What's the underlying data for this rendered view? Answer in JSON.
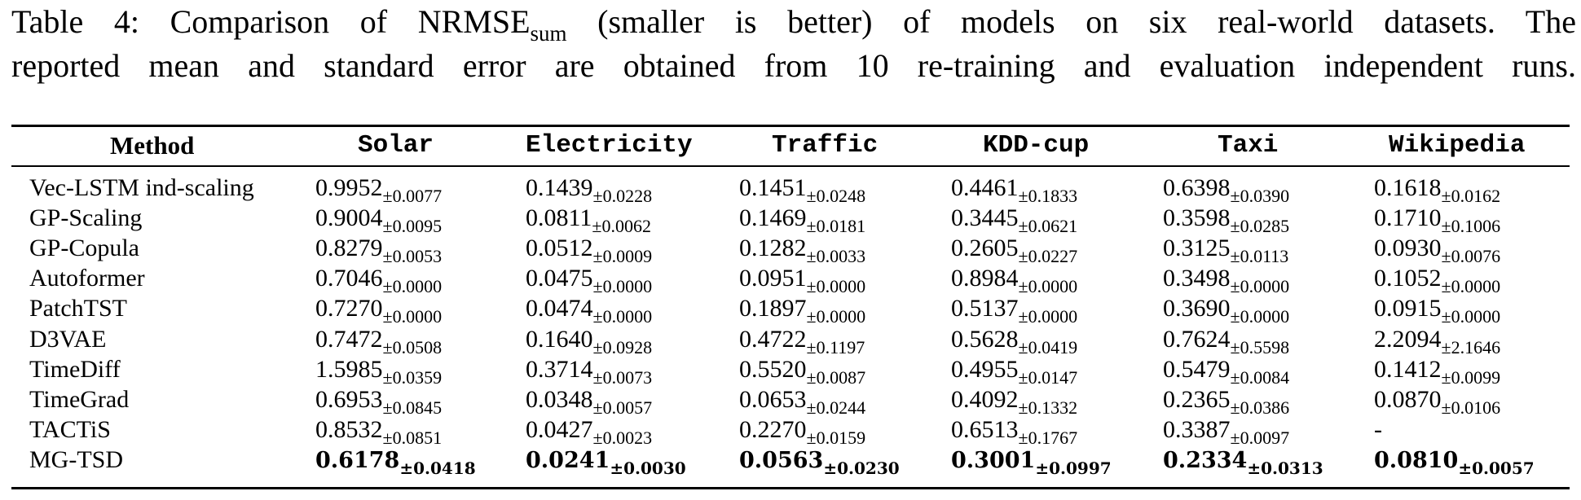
{
  "caption": {
    "line1_prefix": "Table 4:  Comparison of NRMSE",
    "line1_sub": "sum",
    "line1_suffix": " (smaller is better) of models on six real-world datasets.  The",
    "line2": "reported mean and standard error are obtained from 10 re-training and evaluation independent runs."
  },
  "table": {
    "headers": [
      "Method",
      "Solar",
      "Electricity",
      "Traffic",
      "KDD-cup",
      "Taxi",
      "Wikipedia"
    ],
    "rows": [
      {
        "method": "Vec-LSTM ind-scaling",
        "values": [
          [
            "0.9952",
            "±0.0077"
          ],
          [
            "0.1439",
            "±0.0228"
          ],
          [
            "0.1451",
            "±0.0248"
          ],
          [
            "0.4461",
            "±0.1833"
          ],
          [
            "0.6398",
            "±0.0390"
          ],
          [
            "0.1618",
            "±0.0162"
          ]
        ]
      },
      {
        "method": "GP-Scaling",
        "values": [
          [
            "0.9004",
            "±0.0095"
          ],
          [
            "0.0811",
            "±0.0062"
          ],
          [
            "0.1469",
            "±0.0181"
          ],
          [
            "0.3445",
            "±0.0621"
          ],
          [
            "0.3598",
            "±0.0285"
          ],
          [
            "0.1710",
            "±0.1006"
          ]
        ]
      },
      {
        "method": "GP-Copula",
        "values": [
          [
            "0.8279",
            "±0.0053"
          ],
          [
            "0.0512",
            "±0.0009"
          ],
          [
            "0.1282",
            "±0.0033"
          ],
          [
            "0.2605",
            "±0.0227"
          ],
          [
            "0.3125",
            "±0.0113"
          ],
          [
            "0.0930",
            "±0.0076"
          ]
        ]
      },
      {
        "method": "Autoformer",
        "values": [
          [
            "0.7046",
            "±0.0000"
          ],
          [
            "0.0475",
            "±0.0000"
          ],
          [
            "0.0951",
            "±0.0000"
          ],
          [
            "0.8984",
            "±0.0000"
          ],
          [
            "0.3498",
            "±0.0000"
          ],
          [
            "0.1052",
            "±0.0000"
          ]
        ]
      },
      {
        "method": "PatchTST",
        "values": [
          [
            "0.7270",
            "±0.0000"
          ],
          [
            "0.0474",
            "±0.0000"
          ],
          [
            "0.1897",
            "±0.0000"
          ],
          [
            "0.5137",
            "±0.0000"
          ],
          [
            "0.3690",
            "±0.0000"
          ],
          [
            "0.0915",
            "±0.0000"
          ]
        ]
      },
      {
        "method": "D3VAE",
        "values": [
          [
            "0.7472",
            "±0.0508"
          ],
          [
            "0.1640",
            "±0.0928"
          ],
          [
            "0.4722",
            "±0.1197"
          ],
          [
            "0.5628",
            "±0.0419"
          ],
          [
            "0.7624",
            "±0.5598"
          ],
          [
            "2.2094",
            "±2.1646"
          ]
        ]
      },
      {
        "method": "TimeDiff",
        "values": [
          [
            "1.5985",
            "±0.0359"
          ],
          [
            "0.3714",
            "±0.0073"
          ],
          [
            "0.5520",
            "±0.0087"
          ],
          [
            "0.4955",
            "±0.0147"
          ],
          [
            "0.5479",
            "±0.0084"
          ],
          [
            "0.1412",
            "±0.0099"
          ]
        ]
      },
      {
        "method": "TimeGrad",
        "values": [
          [
            "0.6953",
            "±0.0845"
          ],
          [
            "0.0348",
            "±0.0057"
          ],
          [
            "0.0653",
            "±0.0244"
          ],
          [
            "0.4092",
            "±0.1332"
          ],
          [
            "0.2365",
            "±0.0386"
          ],
          [
            "0.0870",
            "±0.0106"
          ]
        ]
      },
      {
        "method": "TACTiS",
        "values": [
          [
            "0.8532",
            "±0.0851"
          ],
          [
            "0.0427",
            "±0.0023"
          ],
          [
            "0.2270",
            "±0.0159"
          ],
          [
            "0.6513",
            "±0.1767"
          ],
          [
            "0.3387",
            "±0.0097"
          ],
          [
            "-",
            ""
          ]
        ]
      },
      {
        "method": "MG-TSD",
        "best": true,
        "values": [
          [
            "0.6178",
            "±0.0418"
          ],
          [
            "0.0241",
            "±0.0030"
          ],
          [
            "0.0563",
            "±0.0230"
          ],
          [
            "0.3001",
            "±0.0997"
          ],
          [
            "0.2334",
            "±0.0313"
          ],
          [
            "0.0810",
            "±0.0057"
          ]
        ]
      }
    ]
  }
}
